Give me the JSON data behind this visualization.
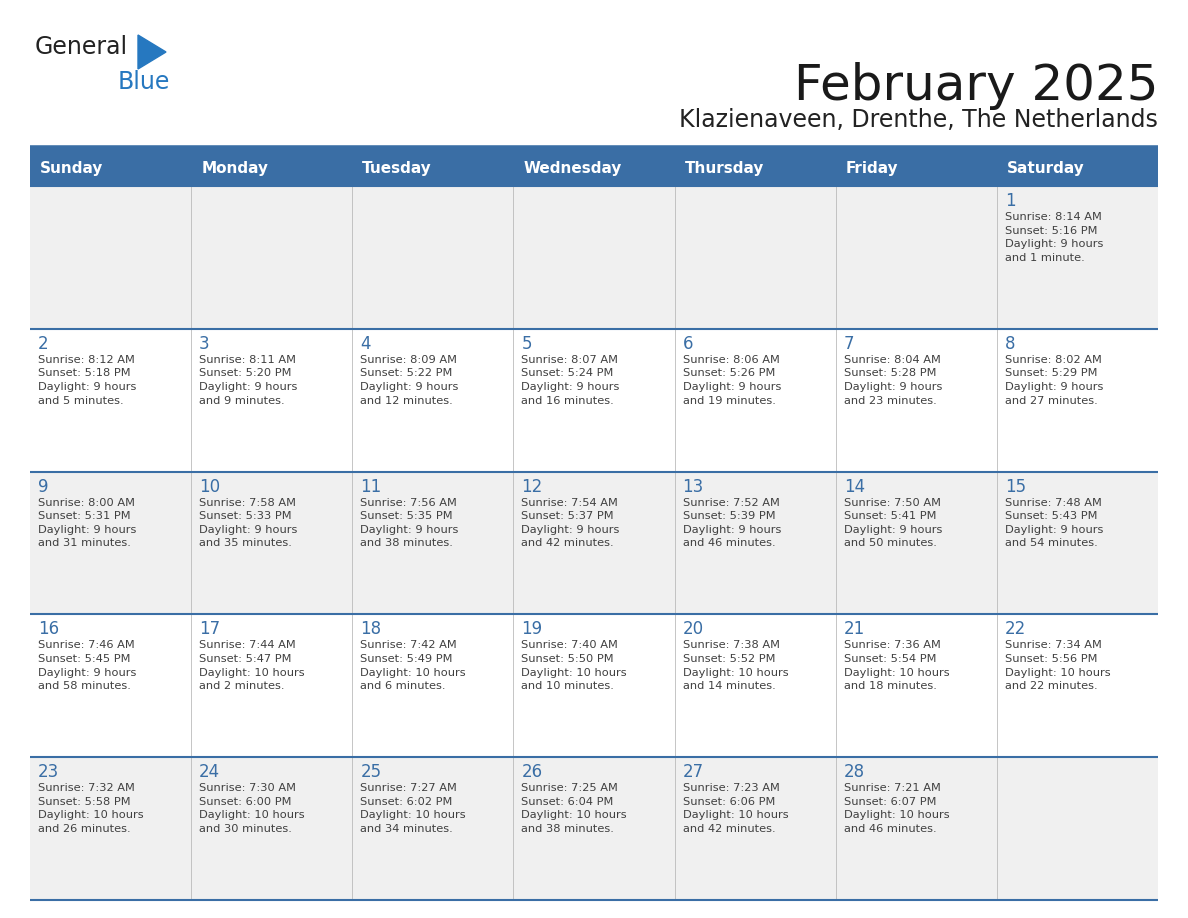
{
  "title": "February 2025",
  "subtitle": "Klazienaveen, Drenthe, The Netherlands",
  "header_bg": "#3a6ea5",
  "header_text_color": "#ffffff",
  "day_names": [
    "Sunday",
    "Monday",
    "Tuesday",
    "Wednesday",
    "Thursday",
    "Friday",
    "Saturday"
  ],
  "title_font_size": 36,
  "subtitle_font_size": 17,
  "cell_bg_light": "#f0f0f0",
  "cell_bg_white": "#ffffff",
  "separator_color": "#3a6ea5",
  "day_number_color": "#3a6ea5",
  "text_color": "#404040",
  "logo_general_color": "#222222",
  "logo_blue_color": "#2678c0",
  "fig_width": 11.88,
  "fig_height": 9.18,
  "weeks": [
    [
      {
        "day": null,
        "sunrise": null,
        "sunset": null,
        "daylight": null
      },
      {
        "day": null,
        "sunrise": null,
        "sunset": null,
        "daylight": null
      },
      {
        "day": null,
        "sunrise": null,
        "sunset": null,
        "daylight": null
      },
      {
        "day": null,
        "sunrise": null,
        "sunset": null,
        "daylight": null
      },
      {
        "day": null,
        "sunrise": null,
        "sunset": null,
        "daylight": null
      },
      {
        "day": null,
        "sunrise": null,
        "sunset": null,
        "daylight": null
      },
      {
        "day": 1,
        "sunrise": "8:14 AM",
        "sunset": "5:16 PM",
        "daylight": "9 hours\nand 1 minute."
      }
    ],
    [
      {
        "day": 2,
        "sunrise": "8:12 AM",
        "sunset": "5:18 PM",
        "daylight": "9 hours\nand 5 minutes."
      },
      {
        "day": 3,
        "sunrise": "8:11 AM",
        "sunset": "5:20 PM",
        "daylight": "9 hours\nand 9 minutes."
      },
      {
        "day": 4,
        "sunrise": "8:09 AM",
        "sunset": "5:22 PM",
        "daylight": "9 hours\nand 12 minutes."
      },
      {
        "day": 5,
        "sunrise": "8:07 AM",
        "sunset": "5:24 PM",
        "daylight": "9 hours\nand 16 minutes."
      },
      {
        "day": 6,
        "sunrise": "8:06 AM",
        "sunset": "5:26 PM",
        "daylight": "9 hours\nand 19 minutes."
      },
      {
        "day": 7,
        "sunrise": "8:04 AM",
        "sunset": "5:28 PM",
        "daylight": "9 hours\nand 23 minutes."
      },
      {
        "day": 8,
        "sunrise": "8:02 AM",
        "sunset": "5:29 PM",
        "daylight": "9 hours\nand 27 minutes."
      }
    ],
    [
      {
        "day": 9,
        "sunrise": "8:00 AM",
        "sunset": "5:31 PM",
        "daylight": "9 hours\nand 31 minutes."
      },
      {
        "day": 10,
        "sunrise": "7:58 AM",
        "sunset": "5:33 PM",
        "daylight": "9 hours\nand 35 minutes."
      },
      {
        "day": 11,
        "sunrise": "7:56 AM",
        "sunset": "5:35 PM",
        "daylight": "9 hours\nand 38 minutes."
      },
      {
        "day": 12,
        "sunrise": "7:54 AM",
        "sunset": "5:37 PM",
        "daylight": "9 hours\nand 42 minutes."
      },
      {
        "day": 13,
        "sunrise": "7:52 AM",
        "sunset": "5:39 PM",
        "daylight": "9 hours\nand 46 minutes."
      },
      {
        "day": 14,
        "sunrise": "7:50 AM",
        "sunset": "5:41 PM",
        "daylight": "9 hours\nand 50 minutes."
      },
      {
        "day": 15,
        "sunrise": "7:48 AM",
        "sunset": "5:43 PM",
        "daylight": "9 hours\nand 54 minutes."
      }
    ],
    [
      {
        "day": 16,
        "sunrise": "7:46 AM",
        "sunset": "5:45 PM",
        "daylight": "9 hours\nand 58 minutes."
      },
      {
        "day": 17,
        "sunrise": "7:44 AM",
        "sunset": "5:47 PM",
        "daylight": "10 hours\nand 2 minutes."
      },
      {
        "day": 18,
        "sunrise": "7:42 AM",
        "sunset": "5:49 PM",
        "daylight": "10 hours\nand 6 minutes."
      },
      {
        "day": 19,
        "sunrise": "7:40 AM",
        "sunset": "5:50 PM",
        "daylight": "10 hours\nand 10 minutes."
      },
      {
        "day": 20,
        "sunrise": "7:38 AM",
        "sunset": "5:52 PM",
        "daylight": "10 hours\nand 14 minutes."
      },
      {
        "day": 21,
        "sunrise": "7:36 AM",
        "sunset": "5:54 PM",
        "daylight": "10 hours\nand 18 minutes."
      },
      {
        "day": 22,
        "sunrise": "7:34 AM",
        "sunset": "5:56 PM",
        "daylight": "10 hours\nand 22 minutes."
      }
    ],
    [
      {
        "day": 23,
        "sunrise": "7:32 AM",
        "sunset": "5:58 PM",
        "daylight": "10 hours\nand 26 minutes."
      },
      {
        "day": 24,
        "sunrise": "7:30 AM",
        "sunset": "6:00 PM",
        "daylight": "10 hours\nand 30 minutes."
      },
      {
        "day": 25,
        "sunrise": "7:27 AM",
        "sunset": "6:02 PM",
        "daylight": "10 hours\nand 34 minutes."
      },
      {
        "day": 26,
        "sunrise": "7:25 AM",
        "sunset": "6:04 PM",
        "daylight": "10 hours\nand 38 minutes."
      },
      {
        "day": 27,
        "sunrise": "7:23 AM",
        "sunset": "6:06 PM",
        "daylight": "10 hours\nand 42 minutes."
      },
      {
        "day": 28,
        "sunrise": "7:21 AM",
        "sunset": "6:07 PM",
        "daylight": "10 hours\nand 46 minutes."
      },
      {
        "day": null,
        "sunrise": null,
        "sunset": null,
        "daylight": null
      }
    ]
  ]
}
